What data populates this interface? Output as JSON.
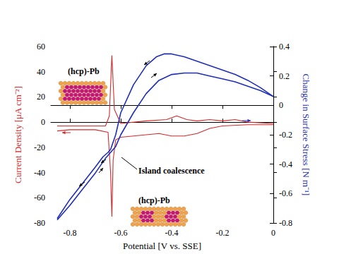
{
  "chart_data": {
    "type": "line",
    "xlabel": "Potential [V vs. SSE]",
    "ylabel": "Current Density [μA cm⁻²]",
    "y2label": "Change in Surface Stress [N m⁻¹]",
    "xlim": [
      -0.875,
      0
    ],
    "xticks": [
      -0.8,
      -0.6,
      -0.4,
      -0.2,
      0
    ],
    "ylim": [
      -80,
      60
    ],
    "yticks": [
      -80,
      -60,
      -40,
      -20,
      0,
      20,
      40,
      60
    ],
    "y2lim": [
      -0.8,
      0.4
    ],
    "y2ticks": [
      -0.8,
      -0.6,
      -0.4,
      -0.2,
      0,
      0.2,
      0.4
    ],
    "grid": false,
    "annotations": [
      "(hcp)-Pb",
      "Island coalescence",
      "(hcp)-Pb"
    ],
    "series": [
      {
        "color": "#d42a2a",
        "axis": "y",
        "x": [
          0,
          -0.1,
          -0.2,
          -0.25,
          -0.3,
          -0.35,
          -0.4,
          -0.45,
          -0.5,
          -0.55,
          -0.6,
          -0.62,
          -0.63,
          -0.635,
          -0.64,
          -0.65,
          -0.7,
          -0.8,
          -0.85
        ],
        "values": [
          -2,
          -2,
          -3,
          -5,
          -9,
          -11,
          -11,
          -9,
          -10,
          -11,
          -12,
          -14,
          -30,
          -75,
          -40,
          -8,
          -6,
          -6,
          -7
        ]
      },
      {
        "color": "#d42a2a",
        "axis": "y",
        "x": [
          -0.85,
          -0.7,
          -0.66,
          -0.645,
          -0.635,
          -0.625,
          -0.6,
          -0.5,
          -0.42,
          -0.38,
          -0.34,
          -0.3,
          -0.25,
          -0.2,
          -0.15,
          -0.1,
          0
        ],
        "values": [
          -3,
          -3,
          -3,
          5,
          53,
          10,
          -1,
          1,
          2,
          5,
          2,
          1,
          2,
          1,
          2,
          0,
          -1
        ]
      },
      {
        "color": "#1f2fb8",
        "axis": "y2",
        "x": [
          0,
          -0.05,
          -0.1,
          -0.15,
          -0.2,
          -0.25,
          -0.3,
          -0.35,
          -0.4,
          -0.43,
          -0.46,
          -0.5,
          -0.55,
          -0.6,
          -0.62,
          -0.64,
          -0.65,
          -0.67,
          -0.7,
          -0.75,
          -0.8,
          -0.85
        ],
        "values": [
          0.06,
          0.12,
          0.17,
          0.21,
          0.24,
          0.27,
          0.3,
          0.33,
          0.35,
          0.35,
          0.33,
          0.27,
          0.14,
          -0.05,
          -0.2,
          -0.3,
          -0.32,
          -0.35,
          -0.42,
          -0.53,
          -0.64,
          -0.77
        ]
      },
      {
        "color": "#1f2fb8",
        "axis": "y2",
        "x": [
          -0.85,
          -0.8,
          -0.75,
          -0.7,
          -0.66,
          -0.64,
          -0.62,
          -0.6,
          -0.55,
          -0.5,
          -0.45,
          -0.4,
          -0.35,
          -0.3,
          -0.25,
          -0.2,
          -0.15,
          -0.1,
          -0.05,
          0
        ],
        "values": [
          -0.78,
          -0.68,
          -0.57,
          -0.46,
          -0.36,
          -0.32,
          -0.28,
          -0.2,
          -0.05,
          0.08,
          0.17,
          0.21,
          0.22,
          0.22,
          0.2,
          0.18,
          0.16,
          0.13,
          0.1,
          0.06
        ]
      }
    ]
  }
}
